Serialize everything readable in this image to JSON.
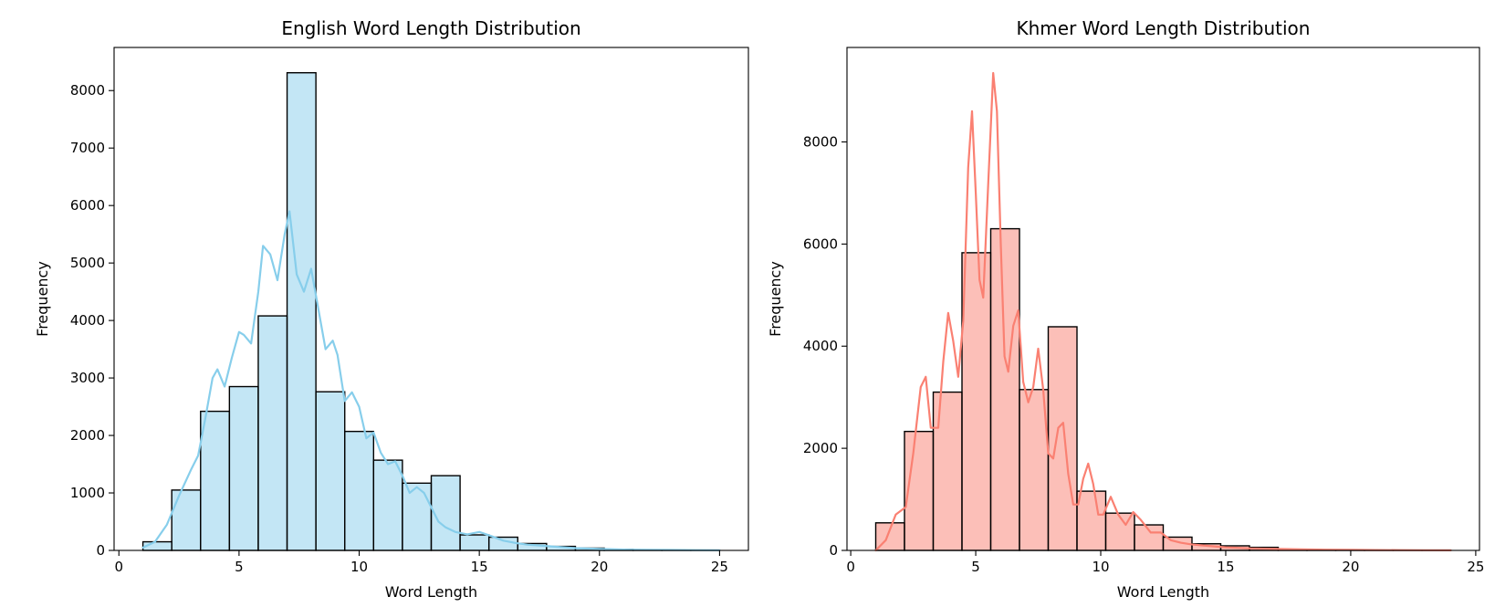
{
  "chart_data": [
    {
      "type": "histogram",
      "title": "English Word Length Distribution",
      "xlabel": "Word Length",
      "ylabel": "Frequency",
      "xlim": [
        -0.2,
        26.2
      ],
      "ylim": [
        0,
        8750
      ],
      "xticks": [
        0,
        5,
        10,
        15,
        20,
        25
      ],
      "yticks": [
        0,
        1000,
        2000,
        3000,
        4000,
        5000,
        6000,
        7000,
        8000
      ],
      "bar_color": "#87CEEB",
      "bar_alpha": 0.5,
      "kde_color": "#87CEEB",
      "bin_edges": [
        1.0,
        2.2,
        3.4,
        4.6,
        5.8,
        7.0,
        8.2,
        9.4,
        10.6,
        11.8,
        13.0,
        14.2,
        15.4,
        16.6,
        17.8,
        19.0,
        20.2,
        21.4,
        22.6,
        23.8,
        25.0
      ],
      "values": [
        150,
        1050,
        2420,
        2850,
        4080,
        8310,
        2760,
        2070,
        1570,
        1170,
        1300,
        270,
        230,
        120,
        70,
        40,
        20,
        10,
        5,
        5
      ],
      "kde": {
        "x": [
          1.0,
          1.5,
          2.0,
          2.5,
          3.0,
          3.3,
          3.6,
          3.9,
          4.1,
          4.4,
          4.7,
          5.0,
          5.2,
          5.5,
          5.8,
          6.0,
          6.3,
          6.6,
          6.9,
          7.1,
          7.4,
          7.7,
          8.0,
          8.3,
          8.6,
          8.9,
          9.1,
          9.4,
          9.7,
          10.0,
          10.3,
          10.6,
          10.9,
          11.2,
          11.5,
          11.8,
          12.1,
          12.4,
          12.7,
          13.0,
          13.3,
          13.6,
          14.0,
          14.5,
          15.0,
          15.5,
          16.0,
          16.5,
          17.0,
          18.0,
          19.0,
          20.0,
          21.0,
          22.0,
          23.0,
          24.0,
          25.0
        ],
        "y": [
          50,
          150,
          450,
          950,
          1400,
          1650,
          2300,
          3000,
          3150,
          2850,
          3350,
          3800,
          3750,
          3600,
          4500,
          5300,
          5150,
          4700,
          5500,
          5900,
          4800,
          4500,
          4900,
          4200,
          3500,
          3650,
          3400,
          2600,
          2750,
          2500,
          1950,
          2050,
          1700,
          1500,
          1550,
          1300,
          1000,
          1100,
          1000,
          750,
          500,
          400,
          320,
          280,
          320,
          250,
          170,
          130,
          100,
          70,
          40,
          25,
          15,
          10,
          8,
          5,
          3
        ]
      }
    },
    {
      "type": "histogram",
      "title": "Khmer Word Length Distribution",
      "xlabel": "Word Length",
      "ylabel": "Frequency",
      "xlim": [
        -0.15,
        25.15
      ],
      "ylim": [
        0,
        9850
      ],
      "xticks": [
        0,
        5,
        10,
        15,
        20,
        25
      ],
      "yticks": [
        0,
        2000,
        4000,
        6000,
        8000
      ],
      "bar_color": "#FA8072",
      "bar_alpha": 0.5,
      "kde_color": "#FA8072",
      "bin_edges": [
        1.0,
        2.15,
        3.3,
        4.45,
        5.6,
        6.75,
        7.9,
        9.05,
        10.2,
        11.35,
        12.5,
        13.65,
        14.8,
        15.95,
        17.1,
        18.25,
        19.4,
        20.55,
        21.7,
        22.85,
        24.0
      ],
      "values": [
        540,
        2330,
        3100,
        5830,
        6300,
        3150,
        4380,
        1160,
        730,
        500,
        260,
        130,
        90,
        60,
        20,
        10,
        10,
        5,
        5,
        5
      ],
      "kde": {
        "x": [
          1.0,
          1.4,
          1.8,
          2.2,
          2.5,
          2.8,
          3.0,
          3.2,
          3.5,
          3.7,
          3.9,
          4.1,
          4.3,
          4.5,
          4.7,
          4.85,
          5.0,
          5.15,
          5.3,
          5.5,
          5.7,
          5.85,
          6.0,
          6.15,
          6.3,
          6.5,
          6.7,
          6.9,
          7.1,
          7.3,
          7.5,
          7.7,
          7.9,
          8.1,
          8.3,
          8.5,
          8.7,
          8.9,
          9.1,
          9.3,
          9.5,
          9.7,
          9.9,
          10.1,
          10.4,
          10.7,
          11.0,
          11.3,
          11.6,
          12.0,
          12.4,
          12.8,
          13.2,
          13.6,
          14.0,
          14.5,
          15.0,
          15.5,
          16.0,
          17.0,
          18.0,
          19.0,
          20.0,
          21.0,
          22.0,
          23.0,
          24.0
        ],
        "y": [
          0,
          200,
          700,
          850,
          1900,
          3200,
          3400,
          2400,
          2400,
          3700,
          4650,
          4100,
          3400,
          4500,
          7500,
          8600,
          7000,
          5300,
          4950,
          7200,
          9350,
          8600,
          6000,
          3800,
          3500,
          4400,
          4700,
          3300,
          2900,
          3200,
          3950,
          3150,
          1900,
          1800,
          2400,
          2500,
          1500,
          900,
          900,
          1400,
          1700,
          1300,
          700,
          700,
          1050,
          700,
          500,
          750,
          600,
          350,
          350,
          200,
          150,
          120,
          100,
          80,
          60,
          50,
          40,
          30,
          20,
          15,
          10,
          8,
          5,
          3,
          2
        ]
      }
    }
  ]
}
